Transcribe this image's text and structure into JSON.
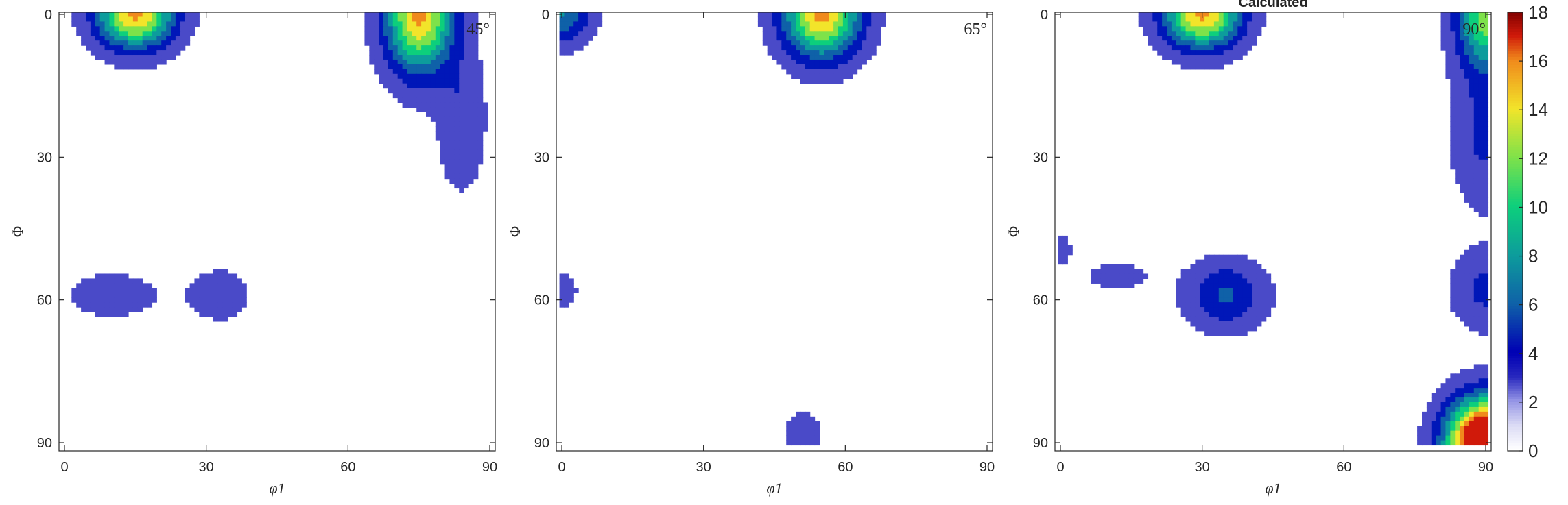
{
  "figure": {
    "title": "Calculated"
  },
  "chart_data": {
    "type": "heatmap",
    "subtype": "filled-contour",
    "colormap": "jet",
    "colorbar": {
      "min": 0,
      "max": 18,
      "ticks": [
        "0",
        "2",
        "4",
        "6",
        "8",
        "10",
        "12",
        "14",
        "16",
        "18"
      ]
    },
    "levels": [
      1,
      3,
      5,
      7,
      9,
      11,
      13,
      15,
      17
    ],
    "level_colors": [
      "#4a4ac8",
      "#0017b8",
      "#0f61a8",
      "#0d9c9c",
      "#0dcf7c",
      "#7ee24a",
      "#f2e42a",
      "#f08a1c",
      "#d01a0a",
      "#800000"
    ],
    "panels": [
      {
        "label": "45°",
        "xlabel": "φ1",
        "ylabel": "Φ",
        "xlim": [
          0,
          90
        ],
        "ylim": [
          0,
          90
        ],
        "xticks": [
          "0",
          "30",
          "60",
          "90"
        ],
        "yticks": [
          "0",
          "30",
          "60",
          "90"
        ],
        "peaks": [
          {
            "x": 15,
            "y": 0,
            "amp": 15.5,
            "sx": 8,
            "sy": 7
          },
          {
            "x": 75,
            "y": 0,
            "amp": 15.5,
            "sx": 7,
            "sy": 12
          },
          {
            "x": 84,
            "y": 22,
            "amp": 2.8,
            "sx": 5,
            "sy": 15
          },
          {
            "x": 10,
            "y": 59,
            "amp": 1.7,
            "sx": 12,
            "sy": 6
          },
          {
            "x": 33,
            "y": 59,
            "amp": 1.7,
            "sx": 8,
            "sy": 7
          }
        ]
      },
      {
        "label": "65°",
        "xlabel": "φ1",
        "ylabel": "Φ",
        "xlim": [
          0,
          90
        ],
        "ylim": [
          0,
          90
        ],
        "xticks": [
          "0",
          "30",
          "60",
          "90"
        ],
        "yticks": [
          "0",
          "30",
          "60",
          "90"
        ],
        "peaks": [
          {
            "x": 55,
            "y": 0,
            "amp": 15.5,
            "sx": 8,
            "sy": 9
          },
          {
            "x": 0,
            "y": 0,
            "amp": 7,
            "sx": 6,
            "sy": 6
          },
          {
            "x": 0,
            "y": 58,
            "amp": 1.8,
            "sx": 4,
            "sy": 5
          },
          {
            "x": 51,
            "y": 90,
            "amp": 1.8,
            "sx": 5,
            "sy": 9
          }
        ]
      },
      {
        "label": "90°",
        "xlabel": "φ1",
        "ylabel": "Φ",
        "xlim": [
          0,
          90
        ],
        "ylim": [
          0,
          90
        ],
        "xticks": [
          "0",
          "30",
          "60",
          "90"
        ],
        "yticks": [
          "0",
          "30",
          "60",
          "90"
        ],
        "peaks": [
          {
            "x": 30,
            "y": 0,
            "amp": 15.5,
            "sx": 8,
            "sy": 7
          },
          {
            "x": 90,
            "y": 0,
            "amp": 12,
            "sx": 6,
            "sy": 11
          },
          {
            "x": 90,
            "y": 25,
            "amp": 3.5,
            "sx": 7,
            "sy": 15
          },
          {
            "x": 90,
            "y": 58,
            "amp": 3.5,
            "sx": 7,
            "sy": 8
          },
          {
            "x": 90,
            "y": 90,
            "amp": 25,
            "sx": 8,
            "sy": 9
          },
          {
            "x": 35,
            "y": 59,
            "amp": 5.2,
            "sx": 8,
            "sy": 7
          },
          {
            "x": 12,
            "y": 55,
            "amp": 1.5,
            "sx": 9,
            "sy": 4
          },
          {
            "x": 0,
            "y": 49,
            "amp": 1.6,
            "sx": 3,
            "sy": 4
          }
        ]
      }
    ]
  }
}
